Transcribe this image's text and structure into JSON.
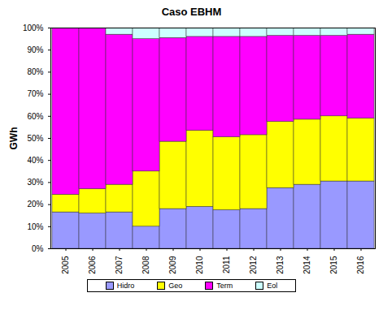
{
  "chart_data": {
    "type": "bar",
    "title": "Caso EBHM",
    "y_label": "GWh",
    "stacked": true,
    "grid": false,
    "legend": "bottom",
    "categories": [
      "2005",
      "2006",
      "2007",
      "2008",
      "2009",
      "2010",
      "2011",
      "2012",
      "2013",
      "2014",
      "2015",
      "2016"
    ],
    "series": [
      {
        "name": "Hidro",
        "color": "#9999ff",
        "values": [
          16.5,
          16,
          16.5,
          10,
          18,
          19,
          17.5,
          18,
          27.5,
          29,
          30.5,
          30.5
        ]
      },
      {
        "name": "Geo",
        "color": "#ffff00",
        "values": [
          8,
          11,
          12.5,
          25,
          30.5,
          34.5,
          33,
          33.5,
          30,
          29.5,
          29.5,
          28.5
        ]
      },
      {
        "name": "Term",
        "color": "#ff00ff",
        "values": [
          75.5,
          73,
          68,
          60,
          47,
          42.5,
          45.5,
          44.5,
          39,
          38,
          36.5,
          38
        ]
      },
      {
        "name": "Eol",
        "color": "#ccffff",
        "values": [
          0,
          0,
          3,
          5,
          4.5,
          4,
          4,
          4,
          3.5,
          3.5,
          3.5,
          3
        ]
      }
    ],
    "ylim": [
      0,
      100
    ],
    "yticks": [
      {
        "value": 0,
        "label": "0%"
      },
      {
        "value": 10,
        "label": "10%"
      },
      {
        "value": 20,
        "label": "20%"
      },
      {
        "value": 30,
        "label": "30%"
      },
      {
        "value": 40,
        "label": "40%"
      },
      {
        "value": 50,
        "label": "50%"
      },
      {
        "value": 60,
        "label": "60%"
      },
      {
        "value": 70,
        "label": "70%"
      },
      {
        "value": 80,
        "label": "80%"
      },
      {
        "value": 90,
        "label": "90%"
      },
      {
        "value": 100,
        "label": "100%"
      }
    ]
  }
}
